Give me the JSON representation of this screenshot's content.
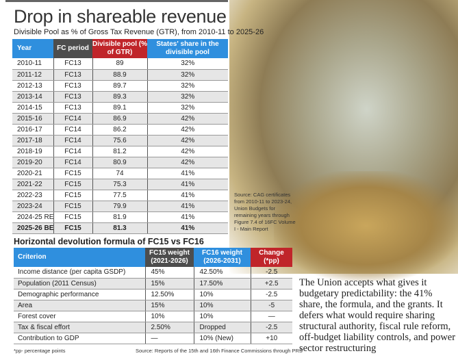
{
  "title": "Drop in shareable revenue",
  "subtitle": "Divisible Pool as % of Gross Tax Revenue (GTR), from 2010-11 to 2025-26",
  "table1": {
    "headers": [
      "Year",
      "FC period",
      "Divisible pool (% of GTR)",
      "States' share in the divisible pool"
    ],
    "rows": [
      [
        "2010-11",
        "FC13",
        "89",
        "32%"
      ],
      [
        "2011-12",
        "FC13",
        "88.9",
        "32%"
      ],
      [
        "2012-13",
        "FC13",
        "89.7",
        "32%"
      ],
      [
        "2013-14",
        "FC13",
        "89.3",
        "32%"
      ],
      [
        "2014-15",
        "FC13",
        "89.1",
        "32%"
      ],
      [
        "2015-16",
        "FC14",
        "86.9",
        "42%"
      ],
      [
        "2016-17",
        "FC14",
        "86.2",
        "42%"
      ],
      [
        "2017-18",
        "FC14",
        "75.6",
        "42%"
      ],
      [
        "2018-19",
        "FC14",
        "81.2",
        "42%"
      ],
      [
        "2019-20",
        "FC14",
        "80.9",
        "42%"
      ],
      [
        "2020-21",
        "FC15",
        "74",
        "41%"
      ],
      [
        "2021-22",
        "FC15",
        "75.3",
        "41%"
      ],
      [
        "2022-23",
        "FC15",
        "77.5",
        "41%"
      ],
      [
        "2023-24",
        "FC15",
        "79.9",
        "41%"
      ],
      [
        "2024-25 RE",
        "FC15",
        "81.9",
        "41%"
      ],
      [
        "2025-26 BE",
        "FC15",
        "81.3",
        "41%"
      ]
    ],
    "source": "Source: CAG certificates from 2010-11 to 2023-24, Union Budgets for remaining years through Figure 7.4 of 16FC Volume I - Main Report"
  },
  "table2": {
    "title": "Horizontal devolution formula of FC15 vs FC16",
    "headers": [
      "Criterion",
      "FC15 weight (2021-2026)",
      "FC16 weight (2026-2031)",
      "Change (*pp)"
    ],
    "rows": [
      [
        "Income distance (per capita GSDP)",
        "45%",
        "42.50%",
        "-2.5"
      ],
      [
        "Population (2011 Census)",
        "15%",
        "17.50%",
        "+2.5"
      ],
      [
        "Demographic performance",
        "12.50%",
        "10%",
        "-2.5"
      ],
      [
        "Area",
        "15%",
        "10%",
        "-5"
      ],
      [
        "Forest cover",
        "10%",
        "10%",
        "—"
      ],
      [
        "Tax & fiscal effort",
        "2.50%",
        "Dropped",
        "-2.5"
      ],
      [
        "Contribution to GDP",
        "—",
        "10% (New)",
        "+10"
      ]
    ],
    "footnote": "*pp- percentage points",
    "source": "Source: Reports of the 15th and 16th Finance Commissions through PRS"
  },
  "body_text": "The Union accepts what gives it budgetary predictability: the 41% share, the formula, and the grants. It defers what would require sharing structural authority, fiscal rule reform, off-budget liability controls, and power sector restructuring",
  "colors": {
    "blue": "#2f8fde",
    "dark": "#4d4d4d",
    "red": "#c0252a"
  }
}
